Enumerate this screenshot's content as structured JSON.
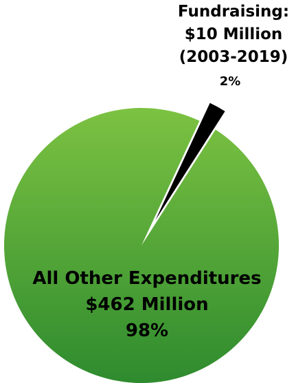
{
  "chart_data": {
    "type": "pie",
    "title": "",
    "slices": [
      {
        "name": "Fundraising",
        "label_lines": [
          "Fundraising:",
          "$10 Million",
          "(2003-2019)"
        ],
        "value_millions": 10,
        "percent_label": "2%",
        "percent": 2,
        "color": "#000000",
        "exploded": true
      },
      {
        "name": "All Other Expenditures",
        "label_lines": [
          "All Other Expenditures",
          "$462 Million"
        ],
        "value_millions": 462,
        "percent_label": "98%",
        "percent": 98,
        "color_top": "#7cc242",
        "color_bottom": "#2e8b2e",
        "exploded": false
      }
    ]
  }
}
